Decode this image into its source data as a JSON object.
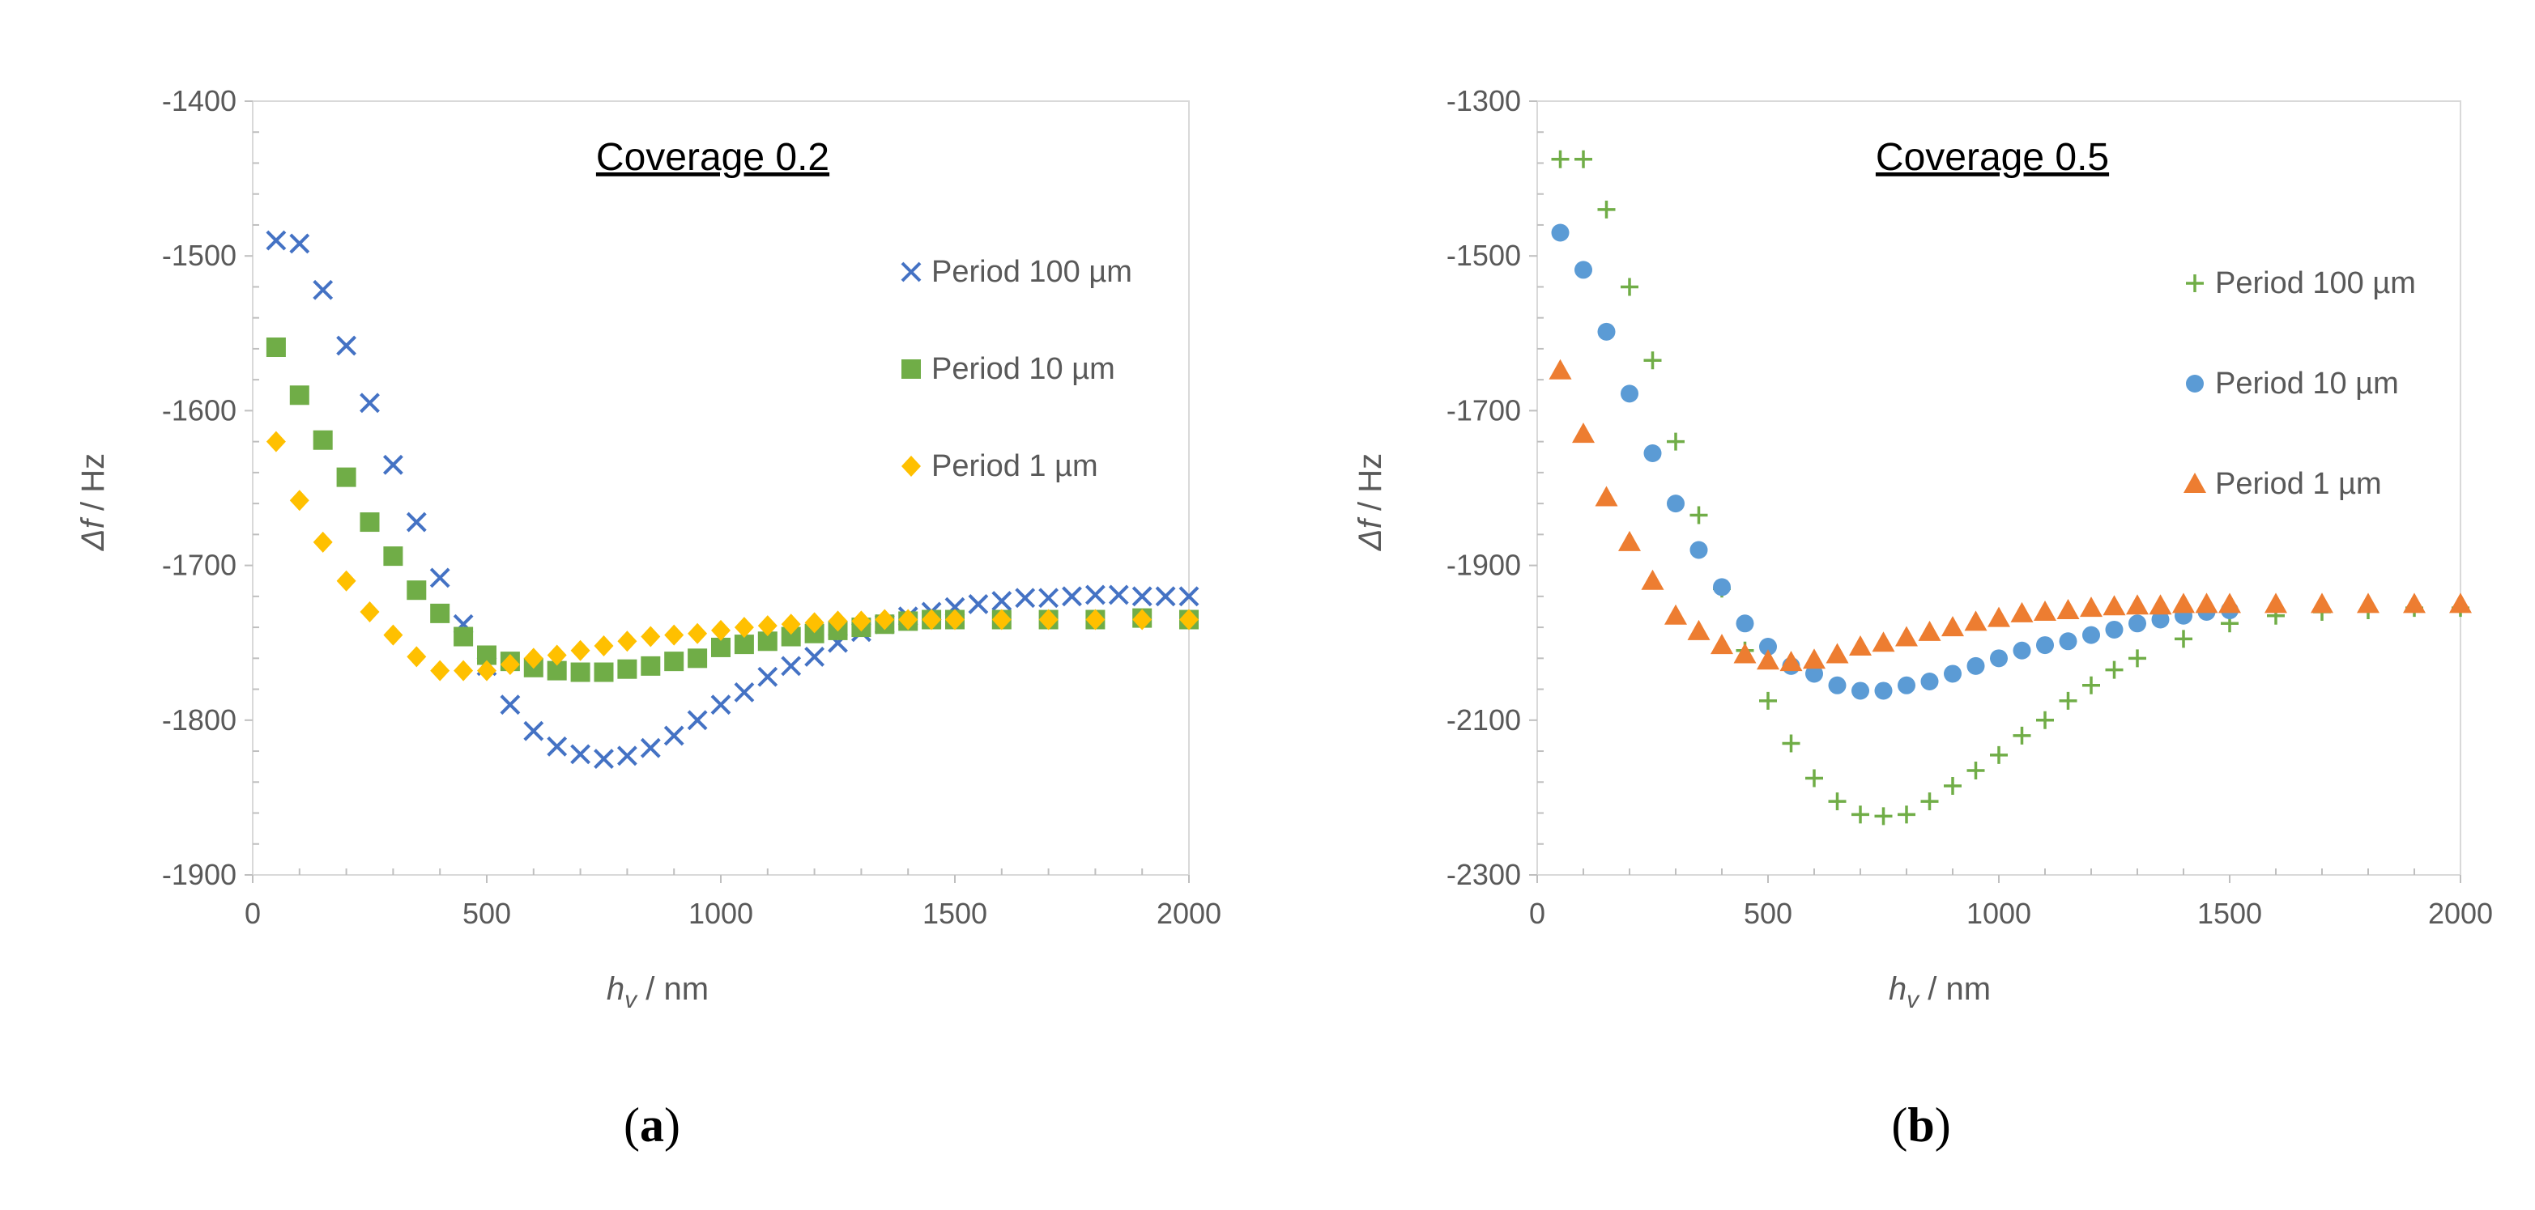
{
  "colors": {
    "blue": "#4472C4",
    "green": "#70AD47",
    "yellow": "#FFC000",
    "orange": "#ED7D31",
    "lightblue": "#5B9BD5",
    "plus_green": "#70AD47"
  },
  "chart_data": [
    {
      "type": "scatter",
      "title": "Coverage 0.2",
      "caption_letter": "a",
      "xlabel_main": "h",
      "xlabel_sub": "v",
      "xlabel_rest": " / nm",
      "ylabel_main": "Δf",
      "ylabel_rest": " / Hz",
      "xlim": [
        0,
        2000
      ],
      "ylim": [
        -1900,
        -1400
      ],
      "xticks": [
        0,
        500,
        1000,
        1500,
        2000
      ],
      "yticks": [
        -1900,
        -1800,
        -1700,
        -1600,
        -1500,
        -1400
      ],
      "series": [
        {
          "name": "Period 100 µm",
          "marker": "x",
          "color": "#4472C4",
          "x": [
            50,
            100,
            150,
            200,
            250,
            300,
            350,
            400,
            450,
            500,
            550,
            600,
            650,
            700,
            750,
            800,
            850,
            900,
            950,
            1000,
            1050,
            1100,
            1150,
            1200,
            1250,
            1300,
            1350,
            1400,
            1450,
            1500,
            1550,
            1600,
            1650,
            1700,
            1750,
            1800,
            1850,
            1900,
            1950,
            2000
          ],
          "y": [
            -1490,
            -1492,
            -1522,
            -1558,
            -1595,
            -1635,
            -1672,
            -1708,
            -1738,
            -1765,
            -1790,
            -1807,
            -1817,
            -1822,
            -1825,
            -1823,
            -1818,
            -1810,
            -1800,
            -1790,
            -1782,
            -1772,
            -1765,
            -1759,
            -1750,
            -1743,
            -1738,
            -1733,
            -1730,
            -1727,
            -1725,
            -1723,
            -1721,
            -1721,
            -1720,
            -1719,
            -1719,
            -1720,
            -1720,
            -1720
          ]
        },
        {
          "name": "Period 10 µm",
          "marker": "square",
          "color": "#70AD47",
          "x": [
            50,
            100,
            150,
            200,
            250,
            300,
            350,
            400,
            450,
            500,
            550,
            600,
            650,
            700,
            750,
            800,
            850,
            900,
            950,
            1000,
            1050,
            1100,
            1150,
            1200,
            1250,
            1300,
            1350,
            1400,
            1450,
            1500,
            1600,
            1700,
            1800,
            1900,
            2000
          ],
          "y": [
            -1559,
            -1590,
            -1619,
            -1643,
            -1672,
            -1694,
            -1716,
            -1731,
            -1746,
            -1758,
            -1762,
            -1766,
            -1768,
            -1769,
            -1769,
            -1767,
            -1765,
            -1762,
            -1760,
            -1753,
            -1751,
            -1749,
            -1746,
            -1744,
            -1742,
            -1740,
            -1738,
            -1736,
            -1735,
            -1735,
            -1735,
            -1735,
            -1735,
            -1734,
            -1735
          ]
        },
        {
          "name": "Period 1 µm",
          "marker": "diamond",
          "color": "#FFC000",
          "x": [
            50,
            100,
            150,
            200,
            250,
            300,
            350,
            400,
            450,
            500,
            550,
            600,
            650,
            700,
            750,
            800,
            850,
            900,
            950,
            1000,
            1050,
            1100,
            1150,
            1200,
            1250,
            1300,
            1350,
            1400,
            1450,
            1500,
            1600,
            1700,
            1800,
            1900,
            2000
          ],
          "y": [
            -1620,
            -1658,
            -1685,
            -1710,
            -1730,
            -1745,
            -1759,
            -1768,
            -1768,
            -1768,
            -1764,
            -1760,
            -1758,
            -1755,
            -1752,
            -1749,
            -1746,
            -1745,
            -1744,
            -1742,
            -1740,
            -1739,
            -1738,
            -1737,
            -1736,
            -1736,
            -1735,
            -1735,
            -1735,
            -1735,
            -1735,
            -1735,
            -1735,
            -1735,
            -1735
          ]
        }
      ]
    },
    {
      "type": "scatter",
      "title": "Coverage 0.5",
      "caption_letter": "b",
      "xlabel_main": "h",
      "xlabel_sub": "v",
      "xlabel_rest": " / nm",
      "ylabel_main": "Δf",
      "ylabel_rest": " / Hz",
      "xlim": [
        0,
        2000
      ],
      "ylim": [
        -2300,
        -1300
      ],
      "xticks": [
        0,
        500,
        1000,
        1500,
        2000
      ],
      "yticks": [
        -2300,
        -2100,
        -1900,
        -1700,
        -1500,
        -1300
      ],
      "series": [
        {
          "name": "Period 100 µm",
          "marker": "plus",
          "color": "#70AD47",
          "x": [
            50,
            100,
            150,
            200,
            250,
            300,
            350,
            400,
            450,
            500,
            550,
            600,
            650,
            700,
            750,
            800,
            850,
            900,
            950,
            1000,
            1050,
            1100,
            1150,
            1200,
            1250,
            1300,
            1400,
            1500,
            1600,
            1700,
            1800,
            1900,
            2000
          ],
          "y": [
            -1375,
            -1375,
            -1440,
            -1540,
            -1635,
            -1740,
            -1835,
            -1930,
            -2010,
            -2075,
            -2130,
            -2175,
            -2205,
            -2222,
            -2224,
            -2222,
            -2205,
            -2185,
            -2165,
            -2145,
            -2120,
            -2100,
            -2075,
            -2055,
            -2035,
            -2020,
            -1995,
            -1975,
            -1965,
            -1960,
            -1958,
            -1955,
            -1955
          ]
        },
        {
          "name": "Period 10 µm",
          "marker": "circle",
          "color": "#5B9BD5",
          "x": [
            50,
            100,
            150,
            200,
            250,
            300,
            350,
            400,
            450,
            500,
            550,
            600,
            650,
            700,
            750,
            800,
            850,
            900,
            950,
            1000,
            1050,
            1100,
            1150,
            1200,
            1250,
            1300,
            1350,
            1400,
            1450,
            1500
          ],
          "y": [
            -1470,
            -1518,
            -1598,
            -1678,
            -1755,
            -1820,
            -1880,
            -1928,
            -1975,
            -2005,
            -2030,
            -2040,
            -2055,
            -2062,
            -2062,
            -2055,
            -2050,
            -2040,
            -2030,
            -2020,
            -2010,
            -2003,
            -1998,
            -1990,
            -1983,
            -1975,
            -1970,
            -1965,
            -1960,
            -1958
          ]
        },
        {
          "name": "Period 1 µm",
          "marker": "triangle",
          "color": "#ED7D31",
          "x": [
            50,
            100,
            150,
            200,
            250,
            300,
            350,
            400,
            450,
            500,
            550,
            600,
            650,
            700,
            750,
            800,
            850,
            900,
            950,
            1000,
            1050,
            1100,
            1150,
            1200,
            1250,
            1300,
            1350,
            1400,
            1450,
            1500,
            1600,
            1700,
            1800,
            1900,
            2000
          ],
          "y": [
            -1648,
            -1730,
            -1812,
            -1870,
            -1920,
            -1965,
            -1985,
            -2003,
            -2015,
            -2023,
            -2025,
            -2022,
            -2015,
            -2005,
            -2000,
            -1993,
            -1986,
            -1980,
            -1973,
            -1968,
            -1962,
            -1960,
            -1958,
            -1955,
            -1953,
            -1952,
            -1952,
            -1950,
            -1950,
            -1950,
            -1950,
            -1950,
            -1950,
            -1950,
            -1950
          ]
        }
      ]
    }
  ]
}
